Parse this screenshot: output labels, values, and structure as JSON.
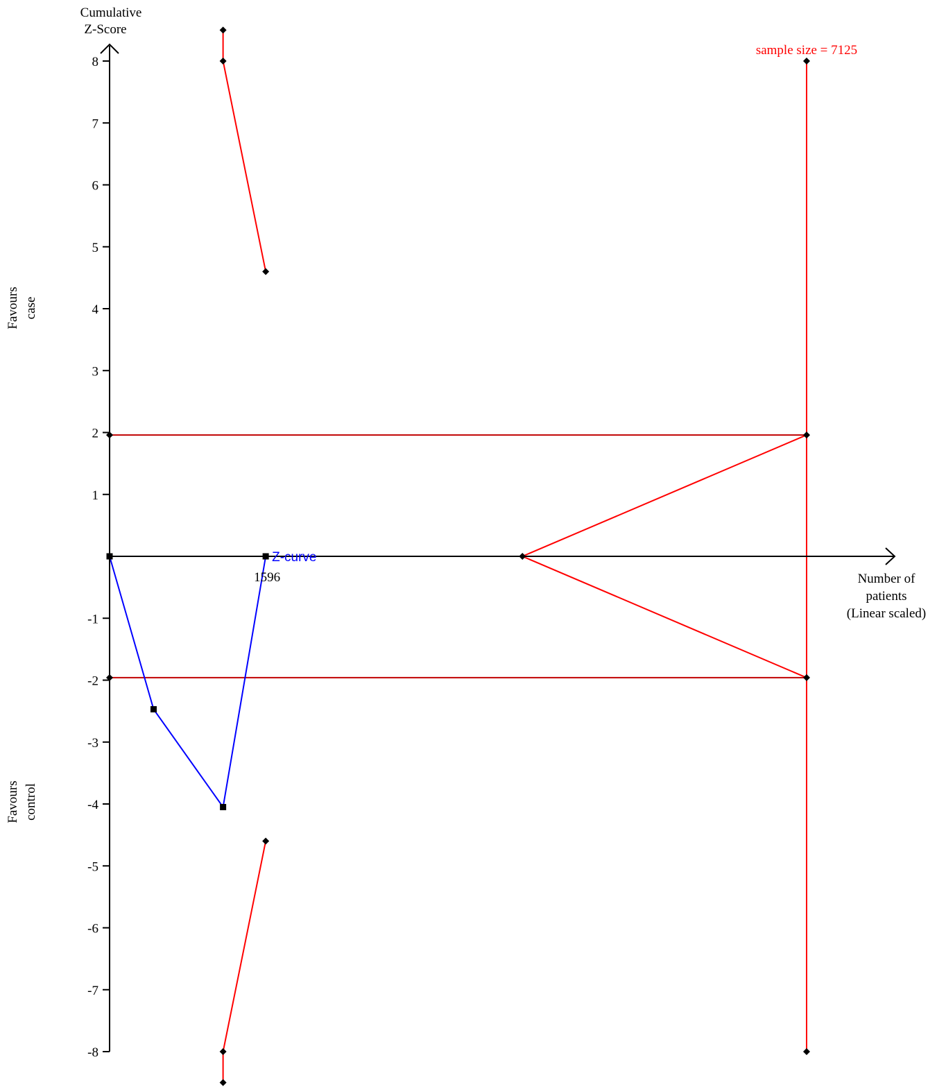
{
  "chart_data": {
    "type": "line",
    "title": "",
    "ylabel": [
      "Cumulative",
      "Z-Score"
    ],
    "xlabel": [
      "Number of",
      "patients",
      "(Linear scaled)"
    ],
    "side_labels": {
      "upper": [
        "Favours",
        "case"
      ],
      "lower": [
        "Favours",
        "control"
      ]
    },
    "ylim": [
      -8.5,
      8.5
    ],
    "xlim": [
      0,
      7125
    ],
    "y_ticks": [
      -8,
      -7,
      -6,
      -5,
      -4,
      -3,
      -2,
      -1,
      1,
      2,
      3,
      4,
      5,
      6,
      7,
      8
    ],
    "y_tick_labels": [
      "-8",
      "-7",
      "-6",
      "-5",
      "-4",
      "-3",
      "-2",
      "-1",
      "1",
      "2",
      "3",
      "4",
      "5",
      "6",
      "7",
      "8"
    ],
    "colors": {
      "boundary": "#ff0000",
      "conventional": "#c00000",
      "zcurve": "#0000ff",
      "axis": "#000000"
    },
    "z_curve": {
      "name": "Z-curve",
      "x": [
        0,
        450,
        1160,
        1596
      ],
      "y": [
        0,
        -2.47,
        -4.05,
        0
      ]
    },
    "z_curve_end_label": "1596",
    "required_sample_size": {
      "label": "sample size = 7125",
      "x": 7125,
      "ymin": -8,
      "ymax": 8
    },
    "conventional_boundaries": {
      "upper": 1.96,
      "lower": -1.96
    },
    "monitoring_boundaries": {
      "upper_markers": [
        {
          "x": 1160,
          "y": 8.5
        },
        {
          "x": 1160,
          "y": 8
        },
        {
          "x": 1596,
          "y": 4.6
        }
      ],
      "lower_markers": [
        {
          "x": 1160,
          "y": -8.5
        },
        {
          "x": 1160,
          "y": -8
        },
        {
          "x": 1596,
          "y": -4.6
        }
      ]
    },
    "futility_boundaries": {
      "x": [
        4220,
        7125
      ],
      "upper": [
        0,
        1.96
      ],
      "lower": [
        0,
        -1.96
      ]
    }
  }
}
